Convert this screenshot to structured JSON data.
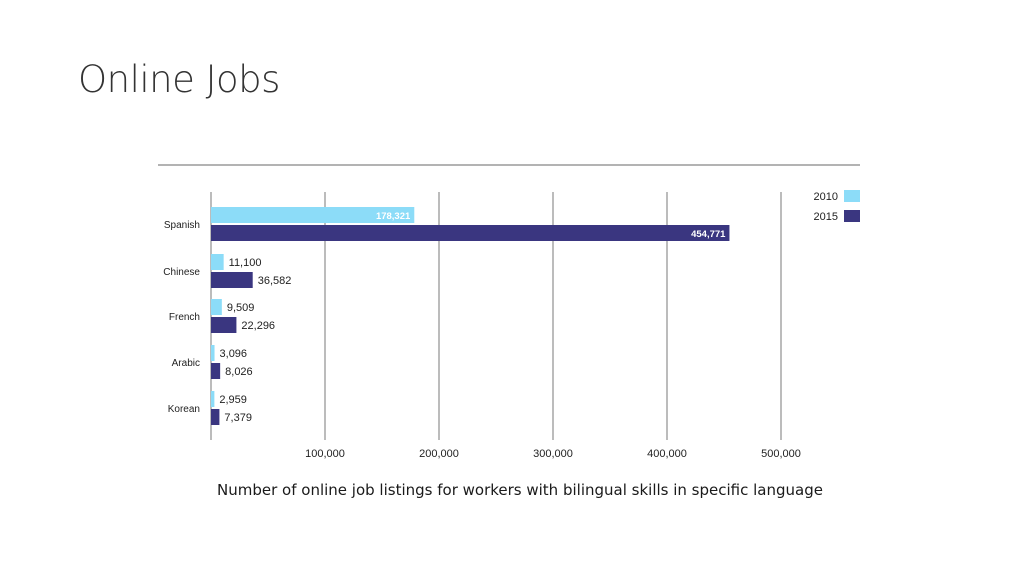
{
  "slide": {
    "title": "Online Jobs",
    "caption": "Number of online job listings for workers with bilingual skills in specific language"
  },
  "chart_data": {
    "type": "bar",
    "orientation": "horizontal",
    "title": "",
    "xlabel": "",
    "ylabel": "",
    "categories": [
      "Spanish",
      "Chinese",
      "French",
      "Arabic",
      "Korean"
    ],
    "series": [
      {
        "name": "2010",
        "color": "#8cdcf8",
        "values": [
          178321,
          11100,
          9509,
          3096,
          2959
        ],
        "labels": [
          "178,321",
          "11,100",
          "9,509",
          "3,096",
          "2,959"
        ]
      },
      {
        "name": "2015",
        "color": "#3a3680",
        "values": [
          454771,
          36582,
          22296,
          8026,
          7379
        ],
        "labels": [
          "454,771",
          "36,582",
          "22,296",
          "8,026",
          "7,379"
        ]
      }
    ],
    "xlim": [
      0,
      500000
    ],
    "xticks": [
      100000,
      200000,
      300000,
      400000,
      500000
    ],
    "xtick_labels": [
      "100,000",
      "200,000",
      "300,000",
      "400,000",
      "500,000"
    ],
    "grid": "vertical",
    "legend": "top-right"
  }
}
